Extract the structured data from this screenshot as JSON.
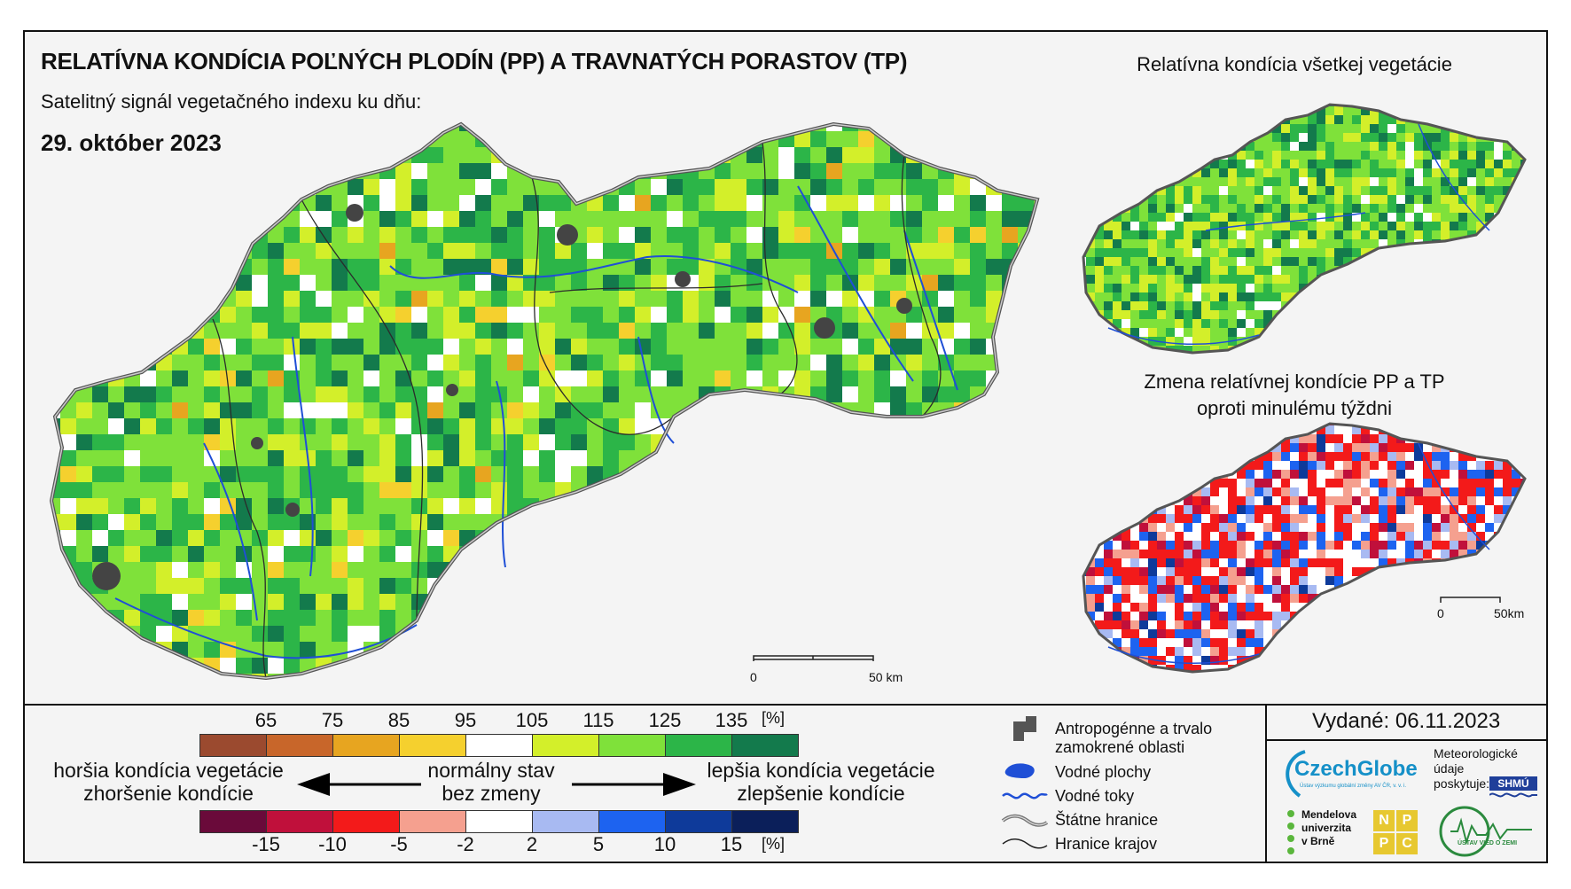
{
  "title": "RELATÍVNA KONDÍCIA POĽNÝCH PLODÍN (PP) A TRAVNATÝCH PORASTOV (TP)",
  "subtitle": "Satelitný signál vegetačného indexu ku dňu:",
  "date": "29. október 2023",
  "inset1_title": "Relatívna kondícia všetkej vegetácie",
  "inset2_title_line1": "Zmena relatívnej kondície PP a TP",
  "inset2_title_line2": "oproti minulému týždni",
  "scalebar_main": {
    "zero": "0",
    "end": "50 km"
  },
  "scalebar_inset": {
    "zero": "0",
    "end": "50km"
  },
  "condition_scale": {
    "ticks": [
      "65",
      "75",
      "85",
      "95",
      "105",
      "115",
      "125",
      "135"
    ],
    "unit": "[%]",
    "colors": [
      "#9b4a2f",
      "#c8662a",
      "#e7a520",
      "#f5d02e",
      "#ffffff",
      "#d3ef2a",
      "#7fe13a",
      "#2cb548",
      "#137a4c"
    ]
  },
  "change_scale": {
    "ticks": [
      "-15",
      "-10",
      "-5",
      "-2",
      "2",
      "5",
      "10",
      "15"
    ],
    "unit": "[%]",
    "colors": [
      "#6a0a3a",
      "#c0103b",
      "#f31a1a",
      "#f5a08f",
      "#ffffff",
      "#a8baf2",
      "#1d63f0",
      "#0e3a9a",
      "#0b1f5a"
    ]
  },
  "labels": {
    "worse1": "horšia kondícia vegetácie",
    "worse2": "zhoršenie kondície",
    "normal1": "normálny stav",
    "normal2": "bez zmeny",
    "better1": "lepšia kondícia vegetácie",
    "better2": "zlepšenie kondície"
  },
  "symbols": {
    "anthropogenic1": "Antropogénne a trvalo",
    "anthropogenic2": "zamokrené oblasti",
    "water_bodies": "Vodné plochy",
    "water_streams": "Vodné toky",
    "state_border": "Štátne hranice",
    "region_border": "Hranice krajov"
  },
  "issued": "Vydané: 06.11.2023",
  "logos": {
    "czechglobe": "CzechGlobe",
    "czechglobe_sub": "Ústav výzkumu globální změny AV ČR, v. v. i.",
    "met1": "Meteorologické",
    "met2": "údaje",
    "met3": "poskytuje:",
    "shmu": "SHMÚ",
    "mendel1": "Mendelova",
    "mendel2": "univerzita",
    "mendel3": "v Brně",
    "nppc": [
      "N",
      "P",
      "P",
      "C"
    ],
    "usvz": "ÚSTAV VIED O ZEMI"
  },
  "colors": {
    "frame_bg": "#f4f4f4",
    "water": "#1f4fd6",
    "urban": "#444444"
  }
}
